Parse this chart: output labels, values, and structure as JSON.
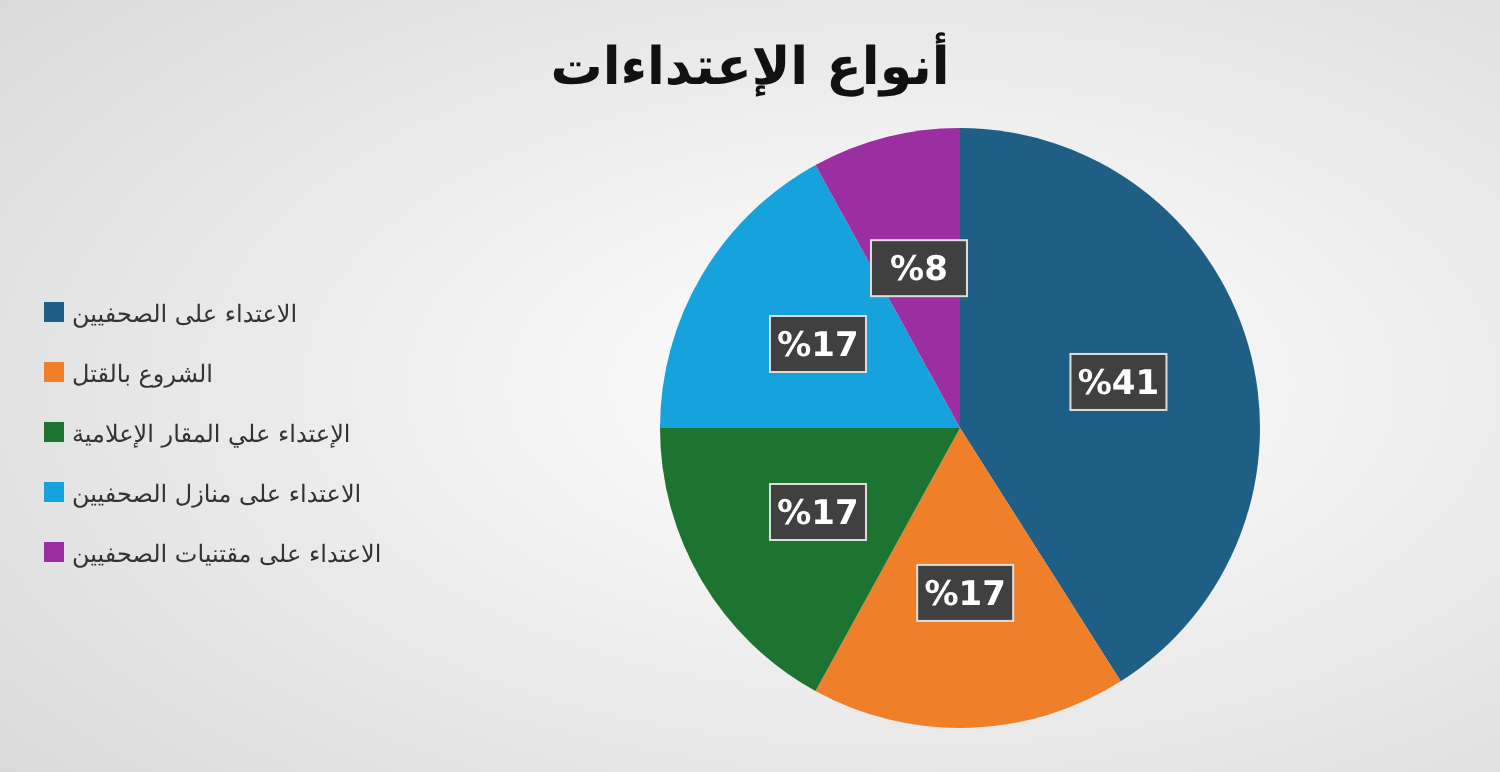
{
  "chart_data": {
    "type": "pie",
    "title": "أنواع الإعتداءات",
    "categories": [
      "الاعتداء على الصحفيين",
      "الشروع بالقتل",
      "الإعتداء علي المقار الإعلامية",
      "الاعتداء على منازل الصحفيين",
      "الاعتداء على مقتنيات الصحفيين"
    ],
    "values": [
      41,
      17,
      17,
      17,
      8
    ],
    "value_labels": [
      "%41",
      "%17",
      "%17",
      "%17",
      "%8"
    ],
    "colors": [
      "#1f5f86",
      "#f07f2a",
      "#1c7430",
      "#16a2dc",
      "#9b2ea0"
    ],
    "legend": "left"
  }
}
